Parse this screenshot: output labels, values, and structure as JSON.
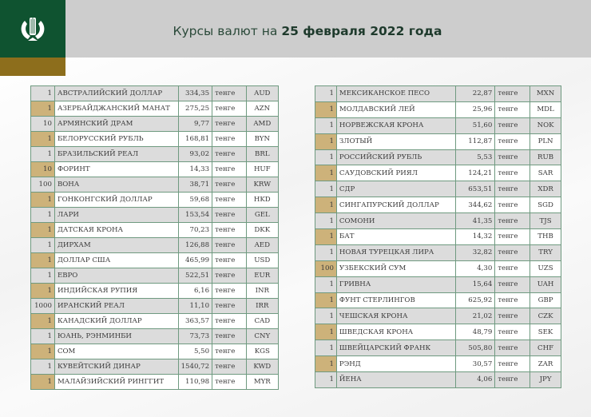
{
  "header": {
    "title_prefix": "Курсы валют на ",
    "title_date": "25 февраля 2022 года",
    "logo": "national-bank-emblem",
    "colors": {
      "green": "#0f5330",
      "gold": "#8d6e1c",
      "tan": "#cdb27a"
    }
  },
  "unit": "тенге",
  "left_table": [
    {
      "qty": "1",
      "name": "АВСТРАЛИЙСКИЙ ДОЛЛАР",
      "rate": "334,35",
      "unit": "тенге",
      "code": "AUD"
    },
    {
      "qty": "1",
      "name": "АЗЕРБАЙДЖАНСКИЙ МАНАТ",
      "rate": "275,25",
      "unit": "тенге",
      "code": "AZN"
    },
    {
      "qty": "10",
      "name": "АРМЯНСКИЙ  ДРАМ",
      "rate": "9,77",
      "unit": "тенге",
      "code": "AMD"
    },
    {
      "qty": "1",
      "name": "БЕЛОРУССКИЙ РУБЛЬ",
      "rate": "168,81",
      "unit": "тенге",
      "code": "BYN"
    },
    {
      "qty": "1",
      "name": "БРАЗИЛЬСКИЙ РЕАЛ",
      "rate": "93,02",
      "unit": "тенге",
      "code": "BRL"
    },
    {
      "qty": "10",
      "name": "ФОРИНТ",
      "rate": "14,33",
      "unit": "тенге",
      "code": "HUF"
    },
    {
      "qty": "100",
      "name": "ВОНА",
      "rate": "38,71",
      "unit": "тенге",
      "code": "KRW"
    },
    {
      "qty": "1",
      "name": "ГОНКОНГСКИЙ ДОЛЛАР",
      "rate": "59,68",
      "unit": "тенге",
      "code": "HKD"
    },
    {
      "qty": "1",
      "name": "ЛАРИ",
      "rate": "153,54",
      "unit": "тенге",
      "code": "GEL"
    },
    {
      "qty": "1",
      "name": "ДАТСКАЯ КРОНА",
      "rate": "70,23",
      "unit": "тенге",
      "code": "DKK"
    },
    {
      "qty": "1",
      "name": "ДИРХАМ",
      "rate": "126,88",
      "unit": "тенге",
      "code": "AED"
    },
    {
      "qty": "1",
      "name": "ДОЛЛАР США",
      "rate": "465,99",
      "unit": "тенге",
      "code": "USD"
    },
    {
      "qty": "1",
      "name": "ЕВРО",
      "rate": "522,51",
      "unit": "тенге",
      "code": "EUR"
    },
    {
      "qty": "1",
      "name": "ИНДИЙСКАЯ РУПИЯ",
      "rate": "6,16",
      "unit": "тенге",
      "code": "INR"
    },
    {
      "qty": "1000",
      "name": "ИРАНСКИЙ РЕАЛ",
      "rate": "11,10",
      "unit": "тенге",
      "code": "IRR"
    },
    {
      "qty": "1",
      "name": "КАНАДСКИЙ ДОЛЛАР",
      "rate": "363,57",
      "unit": "тенге",
      "code": "CAD"
    },
    {
      "qty": "1",
      "name": "ЮАНЬ, РЭНМИНБИ",
      "rate": "73,73",
      "unit": "тенге",
      "code": "CNY"
    },
    {
      "qty": "1",
      "name": "СОМ",
      "rate": "5,50",
      "unit": "тенге",
      "code": "KGS"
    },
    {
      "qty": "1",
      "name": "КУВЕЙТСКИЙ ДИНАР",
      "rate": "1540,72",
      "unit": "тенге",
      "code": "KWD"
    },
    {
      "qty": "1",
      "name": "МАЛАЙЗИЙСКИЙ РИНГГИТ",
      "rate": "110,98",
      "unit": "тенге",
      "code": "MYR"
    }
  ],
  "right_table": [
    {
      "qty": "1",
      "name": "МЕКСИКАНСКОЕ ПЕСО",
      "rate": "22,87",
      "unit": "тенге",
      "code": "MXN"
    },
    {
      "qty": "1",
      "name": "МОЛДАВСКИЙ ЛЕЙ",
      "rate": "25,96",
      "unit": "тенге",
      "code": "MDL"
    },
    {
      "qty": "1",
      "name": "НОРВЕЖСКАЯ КРОНА",
      "rate": "51,60",
      "unit": "тенге",
      "code": "NOK"
    },
    {
      "qty": "1",
      "name": "ЗЛОТЫЙ",
      "rate": "112,87",
      "unit": "тенге",
      "code": "PLN"
    },
    {
      "qty": "1",
      "name": "РОССИЙСКИЙ РУБЛЬ",
      "rate": "5,53",
      "unit": "тенге",
      "code": "RUB"
    },
    {
      "qty": "1",
      "name": "САУДОВСКИЙ РИЯЛ",
      "rate": "124,21",
      "unit": "тенге",
      "code": "SAR"
    },
    {
      "qty": "1",
      "name": "СДР",
      "rate": "653,51",
      "unit": "тенге",
      "code": "XDR"
    },
    {
      "qty": "1",
      "name": "СИНГАПУРСКИЙ ДОЛЛАР",
      "rate": "344,62",
      "unit": "тенге",
      "code": "SGD"
    },
    {
      "qty": "1",
      "name": "СОМОНИ",
      "rate": "41,35",
      "unit": "тенге",
      "code": "TJS"
    },
    {
      "qty": "1",
      "name": "БАТ",
      "rate": "14,32",
      "unit": "тенге",
      "code": "THB"
    },
    {
      "qty": "1",
      "name": "НОВАЯ ТУРЕЦКАЯ ЛИРА",
      "rate": "32,82",
      "unit": "тенге",
      "code": "TRY"
    },
    {
      "qty": "100",
      "name": "УЗБЕКСКИЙ СУМ",
      "rate": "4,30",
      "unit": "тенге",
      "code": "UZS"
    },
    {
      "qty": "1",
      "name": "ГРИВНА",
      "rate": "15,64",
      "unit": "тенге",
      "code": "UAH"
    },
    {
      "qty": "1",
      "name": "ФУНТ СТЕРЛИНГОВ",
      "rate": "625,92",
      "unit": "тенге",
      "code": "GBP"
    },
    {
      "qty": "1",
      "name": "ЧЕШСКАЯ КРОНА",
      "rate": "21,02",
      "unit": "тенге",
      "code": "CZK"
    },
    {
      "qty": "1",
      "name": "ШВЕДСКАЯ КРОНА",
      "rate": "48,79",
      "unit": "тенге",
      "code": "SEK"
    },
    {
      "qty": "1",
      "name": "ШВЕЙЦАРСКИЙ ФРАНК",
      "rate": "505,80",
      "unit": "тенге",
      "code": "CHF"
    },
    {
      "qty": "1",
      "name": "РЭНД",
      "rate": "30,57",
      "unit": "тенге",
      "code": "ZAR"
    },
    {
      "qty": "1",
      "name": "ЙЕНА",
      "rate": "4,06",
      "unit": "тенге",
      "code": "JPY"
    }
  ]
}
